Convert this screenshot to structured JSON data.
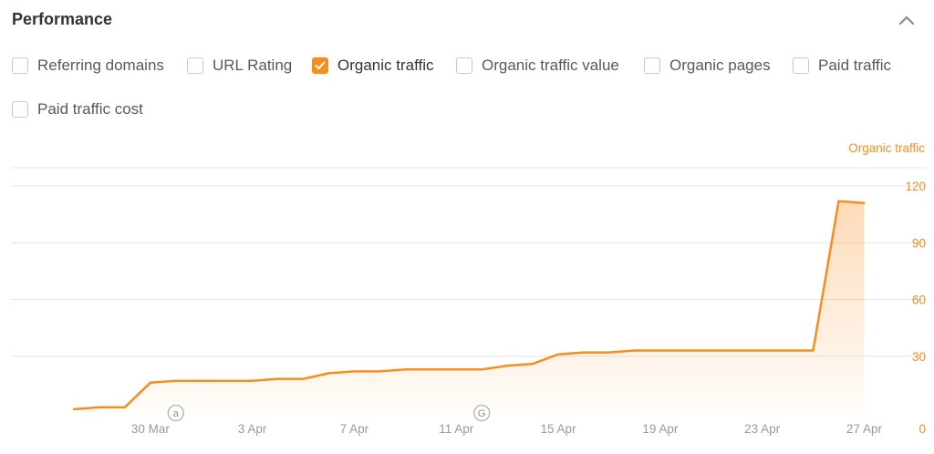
{
  "header": {
    "title": "Performance",
    "collapse_icon": "chevron-up-icon"
  },
  "metrics": [
    {
      "label": "Referring domains",
      "checked": false
    },
    {
      "label": "URL Rating",
      "checked": false
    },
    {
      "label": "Organic traffic",
      "checked": true
    },
    {
      "label": "Organic traffic value",
      "checked": false
    },
    {
      "label": "Organic pages",
      "checked": false
    },
    {
      "label": "Paid traffic",
      "checked": false
    },
    {
      "label": "Paid traffic cost",
      "checked": false
    }
  ],
  "colors": {
    "accent": "#f78d1f",
    "grid": "#e6e6e6",
    "axis_text": "#999999"
  },
  "chart_data": {
    "type": "area",
    "series": [
      {
        "name": "Organic traffic",
        "x": [
          "2025-03-27",
          "2025-03-28",
          "2025-03-29",
          "2025-03-30",
          "2025-03-31",
          "2025-04-01",
          "2025-04-02",
          "2025-04-03",
          "2025-04-04",
          "2025-04-05",
          "2025-04-06",
          "2025-04-07",
          "2025-04-08",
          "2025-04-09",
          "2025-04-10",
          "2025-04-11",
          "2025-04-12",
          "2025-04-13",
          "2025-04-14",
          "2025-04-15",
          "2025-04-16",
          "2025-04-17",
          "2025-04-18",
          "2025-04-19",
          "2025-04-20",
          "2025-04-21",
          "2025-04-22",
          "2025-04-23",
          "2025-04-24",
          "2025-04-25",
          "2025-04-26",
          "2025-04-27"
        ],
        "values": [
          2,
          3,
          3,
          16,
          17,
          17,
          17,
          17,
          18,
          18,
          21,
          22,
          22,
          23,
          23,
          23,
          23,
          25,
          26,
          31,
          32,
          32,
          33,
          33,
          33,
          33,
          33,
          33,
          33,
          33,
          112,
          111
        ]
      }
    ],
    "y_axis_title": "Organic traffic",
    "y_ticks": [
      0,
      30,
      60,
      90,
      120
    ],
    "ylim": [
      0,
      120
    ],
    "x_ticks": [
      {
        "x": "2025-03-30",
        "label": "30 Mar"
      },
      {
        "x": "2025-04-03",
        "label": "3 Apr"
      },
      {
        "x": "2025-04-07",
        "label": "7 Apr"
      },
      {
        "x": "2025-04-11",
        "label": "11 Apr"
      },
      {
        "x": "2025-04-15",
        "label": "15 Apr"
      },
      {
        "x": "2025-04-19",
        "label": "19 Apr"
      },
      {
        "x": "2025-04-23",
        "label": "23 Apr"
      },
      {
        "x": "2025-04-27",
        "label": "27 Apr"
      }
    ],
    "annotations": [
      {
        "x": "2025-03-31",
        "label": "a"
      },
      {
        "x": "2025-04-12",
        "label": "G"
      }
    ],
    "grid": true,
    "y_axis_position": "right"
  }
}
